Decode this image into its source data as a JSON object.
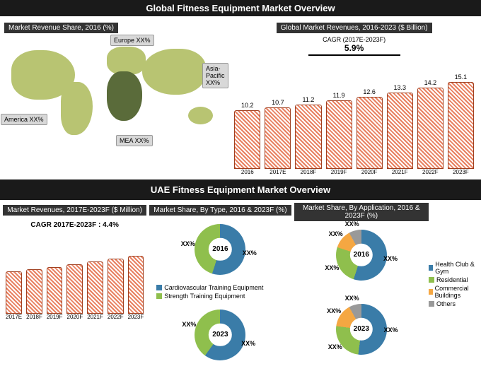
{
  "titles": {
    "global": "Global Fitness Equipment Market Overview",
    "uae": "UAE Fitness Equipment Market Overview",
    "map_header": "Market Revenue Share, 2016 (%)",
    "rev_header": "Global Market Revenues, 2016-2023 ($ Billion)",
    "uae_rev": "Market Revenues, 2017E-2023F\n($ Million)",
    "uae_type": "Market Share, By Type, 2016 & 2023F\n(%)",
    "uae_app": "Market Share, By Application, 2016 & 2023F\n(%)"
  },
  "map_callouts": {
    "europe": "Europe\nXX%",
    "asia": "Asia-\nPacific\nXX%",
    "america": "America XX%",
    "mea": "MEA\nXX%"
  },
  "map_colors": {
    "land": "#b8c472",
    "dark": "#5a6b3a"
  },
  "global_cagr": {
    "label": "CAGR (2017E-2023F)",
    "value": "5.9%"
  },
  "global_bars": {
    "categories": [
      "2016",
      "2017E",
      "2018F",
      "2019F",
      "2020F",
      "2021F",
      "2022F",
      "2023F"
    ],
    "values": [
      10.2,
      10.7,
      11.2,
      11.9,
      12.6,
      13.3,
      14.2,
      15.1
    ],
    "ymax": 16,
    "bar_color": "#e88060"
  },
  "uae_cagr": "CAGR 2017E-2023F : 4.4%",
  "uae_bars": {
    "categories": [
      "2017E",
      "2018F",
      "2019F",
      "2020F",
      "2021F",
      "2022F",
      "2023F"
    ],
    "heights": [
      60,
      63,
      66,
      70,
      74,
      78,
      82
    ],
    "bar_color": "#e88060"
  },
  "type_legend": [
    {
      "label": "Cardiovascular Training Equipment",
      "color": "#3a7ca8"
    },
    {
      "label": "Strength Training Equipment",
      "color": "#8fbf4d"
    }
  ],
  "app_legend": [
    {
      "label": "Health Club & Gym",
      "color": "#3a7ca8"
    },
    {
      "label": "Residential",
      "color": "#8fbf4d"
    },
    {
      "label": "Commercial Buildings",
      "color": "#f5a742"
    },
    {
      "label": "Others",
      "color": "#999999"
    }
  ],
  "donut_type_2016": {
    "slices": [
      {
        "color": "#3a7ca8",
        "pct": 55
      },
      {
        "color": "#8fbf4d",
        "pct": 45
      }
    ],
    "year": "2016"
  },
  "donut_type_2023": {
    "slices": [
      {
        "color": "#3a7ca8",
        "pct": 60
      },
      {
        "color": "#8fbf4d",
        "pct": 40
      }
    ],
    "year": "2023"
  },
  "donut_app_2016": {
    "slices": [
      {
        "color": "#3a7ca8",
        "pct": 55
      },
      {
        "color": "#8fbf4d",
        "pct": 25
      },
      {
        "color": "#f5a742",
        "pct": 12
      },
      {
        "color": "#999999",
        "pct": 8
      }
    ],
    "year": "2016"
  },
  "donut_app_2023": {
    "slices": [
      {
        "color": "#3a7ca8",
        "pct": 52
      },
      {
        "color": "#8fbf4d",
        "pct": 25
      },
      {
        "color": "#f5a742",
        "pct": 15
      },
      {
        "color": "#999999",
        "pct": 8
      }
    ],
    "year": "2023"
  },
  "xx": "XX%"
}
